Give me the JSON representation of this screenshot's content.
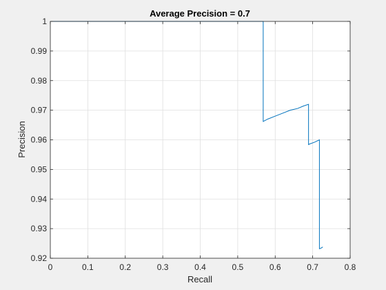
{
  "chart_data": {
    "type": "line",
    "title": "Average Precision = 0.7",
    "xlabel": "Recall",
    "ylabel": "Precision",
    "xlim": [
      0,
      0.8
    ],
    "ylim": [
      0.92,
      1.0
    ],
    "xticks": [
      0,
      0.1,
      0.2,
      0.3,
      0.4,
      0.5,
      0.6,
      0.7,
      0.8
    ],
    "xtick_labels": [
      "0",
      "0.1",
      "0.2",
      "0.3",
      "0.4",
      "0.5",
      "0.6",
      "0.7",
      "0.8"
    ],
    "yticks": [
      0.92,
      0.93,
      0.94,
      0.95,
      0.96,
      0.97,
      0.98,
      0.99,
      1.0
    ],
    "ytick_labels": [
      "0.92",
      "0.93",
      "0.94",
      "0.95",
      "0.96",
      "0.97",
      "0.98",
      "0.99",
      "1"
    ],
    "grid": true,
    "line_color": "#0072bd",
    "series": [
      {
        "x": [
          0.0,
          0.568,
          0.568,
          0.58,
          0.6,
          0.62,
          0.64,
          0.66,
          0.675,
          0.689,
          0.689,
          0.692,
          0.705,
          0.718,
          0.718,
          0.722,
          0.727
        ],
        "y": [
          1.0,
          1.0,
          0.9662,
          0.967,
          0.968,
          0.969,
          0.97,
          0.9706,
          0.9714,
          0.972,
          0.9584,
          0.9586,
          0.9592,
          0.96,
          0.9232,
          0.9234,
          0.9238
        ]
      }
    ]
  }
}
